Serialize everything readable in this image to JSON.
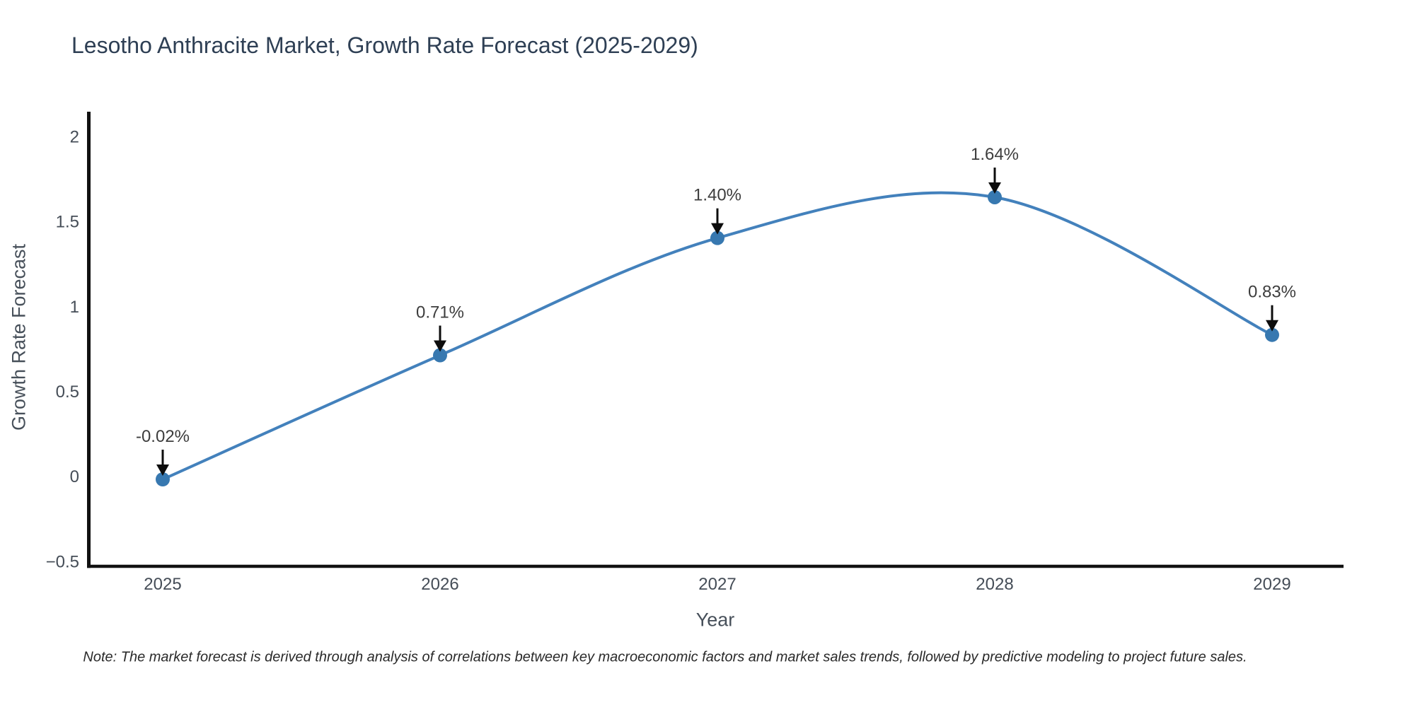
{
  "title": "Lesotho Anthracite Market, Growth Rate Forecast (2025-2029)",
  "footnote": "Note: The market forecast is derived through analysis of correlations between key macroeconomic factors and market sales trends, followed by predictive modeling to project future sales.",
  "chart_data": {
    "type": "line",
    "title": "Lesotho Anthracite Market, Growth Rate Forecast (2025-2029)",
    "xlabel": "Year",
    "ylabel": "Growth Rate Forecast",
    "x": [
      2025,
      2026,
      2027,
      2028,
      2029
    ],
    "xtick_labels": [
      "2025",
      "2026",
      "2027",
      "2028",
      "2029"
    ],
    "values": [
      -0.02,
      0.71,
      1.4,
      1.64,
      0.83
    ],
    "point_labels": [
      "-0.02%",
      "0.71%",
      "1.40%",
      "1.64%",
      "0.83%"
    ],
    "yticks": [
      -0.5,
      0,
      0.5,
      1,
      1.5,
      2
    ],
    "ytick_labels": [
      "−0.5",
      "0",
      "0.5",
      "1",
      "1.5",
      "2"
    ],
    "ylim": [
      -0.54,
      2.135
    ],
    "grid": false,
    "legend_position": "none",
    "line_style": "smooth-spline",
    "annotation_style": "value-label-with-down-arrow"
  },
  "colors": {
    "line": "#4381bc",
    "marker": "#3778b0",
    "spine": "#111111",
    "arrow": "#0d0d0d",
    "tick_label": "#454d57",
    "annotation_text": "#3d3d3d",
    "title_text": "#2e3f54"
  }
}
